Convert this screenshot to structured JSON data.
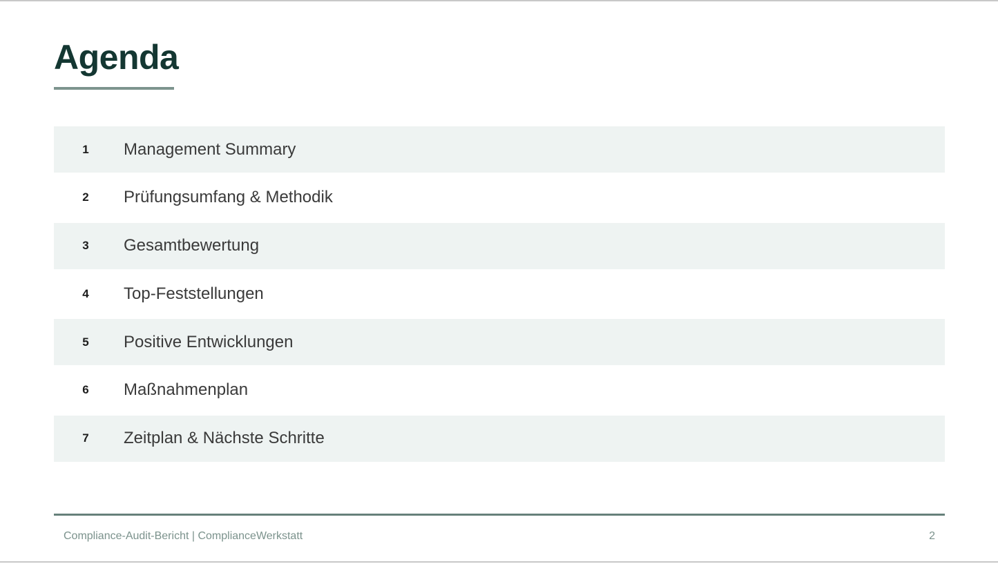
{
  "slide": {
    "title": "Agenda",
    "footer": "Compliance-Audit-Bericht | ComplianceWerkstatt",
    "page_number": "2"
  },
  "agenda": {
    "items": [
      {
        "number": "1",
        "label": "Management Summary"
      },
      {
        "number": "2",
        "label": "Prüfungsumfang & Methodik"
      },
      {
        "number": "3",
        "label": "Gesamtbewertung"
      },
      {
        "number": "4",
        "label": "Top-Feststellungen"
      },
      {
        "number": "5",
        "label": "Positive Entwicklungen"
      },
      {
        "number": "6",
        "label": "Maßnahmenplan"
      },
      {
        "number": "7",
        "label": "Zeitplan & Nächste Schritte"
      }
    ]
  },
  "colors": {
    "title_color": "#143732",
    "accent_underline": "#7d948e",
    "row_shaded": "#eef3f2",
    "item_text": "#3a3a3a",
    "item_number": "#1c1c1c",
    "footer_line": "#66807a",
    "footer_text": "#7b928c",
    "frame_border": "#c8c8c8"
  }
}
